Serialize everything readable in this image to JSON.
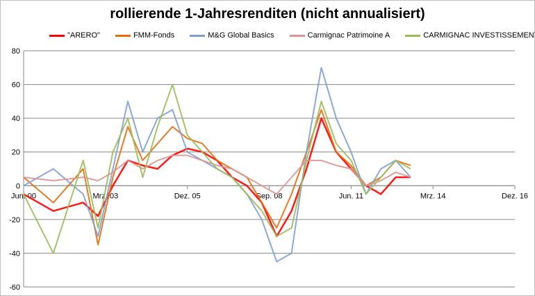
{
  "chart_data": {
    "type": "line",
    "title": "rollierende 1-Jahresrenditen (nicht annualisiert)",
    "xlabel": "",
    "ylabel": "",
    "ylim": [
      -60,
      80
    ],
    "yticks": [
      -60,
      -40,
      -20,
      0,
      20,
      40,
      60,
      80
    ],
    "xticks": [
      "Jun. 00",
      "Mrz. 03",
      "Dez. 05",
      "Sep. 08",
      "Jun. 11",
      "Mrz. 14",
      "Dez. 16"
    ],
    "xlim": [
      "Jun. 00",
      "Dez. 16"
    ],
    "grid": "horizontal",
    "legend_position": "top",
    "x_dates": [
      "2000-06",
      "2001-06",
      "2002-06",
      "2002-12",
      "2003-06",
      "2003-12",
      "2004-06",
      "2004-12",
      "2005-06",
      "2005-12",
      "2006-06",
      "2006-12",
      "2007-06",
      "2007-12",
      "2008-06",
      "2008-12",
      "2009-06",
      "2009-12",
      "2010-06",
      "2010-12",
      "2011-06",
      "2011-12",
      "2012-06",
      "2012-12",
      "2013-06"
    ],
    "series": [
      {
        "name": "\"ARERO\"",
        "color": "#ff0000",
        "values": [
          -5,
          -15,
          -10,
          -18,
          0,
          15,
          12,
          10,
          18,
          22,
          20,
          15,
          5,
          0,
          -10,
          -30,
          -15,
          10,
          40,
          20,
          10,
          0,
          -5,
          5,
          5
        ]
      },
      {
        "name": "FMM-Fonds",
        "color": "#e46c0a",
        "values": [
          5,
          -10,
          10,
          -35,
          5,
          35,
          15,
          25,
          35,
          28,
          25,
          15,
          10,
          5,
          -10,
          -25,
          -5,
          20,
          45,
          20,
          12,
          0,
          5,
          15,
          12
        ]
      },
      {
        "name": "M&G Global Basics",
        "color": "#7f9fcf",
        "values": [
          0,
          10,
          -5,
          -30,
          10,
          50,
          20,
          40,
          45,
          20,
          15,
          10,
          5,
          -5,
          -20,
          -45,
          -40,
          20,
          70,
          40,
          20,
          -5,
          10,
          15,
          5
        ]
      },
      {
        "name": "Carmignac Patrimoine A",
        "color": "#d99594",
        "values": [
          5,
          3,
          5,
          3,
          8,
          15,
          10,
          15,
          18,
          18,
          15,
          12,
          10,
          5,
          0,
          -5,
          5,
          15,
          15,
          12,
          10,
          0,
          3,
          8,
          5
        ]
      },
      {
        "name": "CARMIGNAC INVESTISSEMENT",
        "color": "#9bbb59",
        "values": [
          -5,
          -40,
          15,
          -25,
          20,
          40,
          5,
          35,
          60,
          30,
          20,
          10,
          5,
          -5,
          -15,
          -30,
          -25,
          15,
          50,
          25,
          15,
          -5,
          5,
          15,
          10
        ]
      }
    ]
  }
}
